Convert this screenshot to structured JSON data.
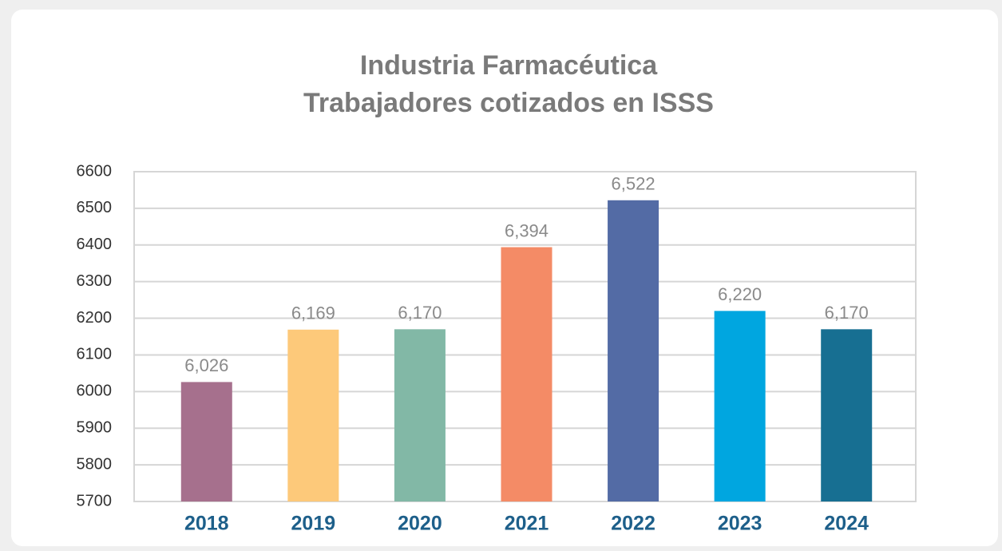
{
  "chart_data": {
    "type": "bar",
    "title": "Industria Farmacéutica",
    "subtitle": "Trabajadores cotizados en ISSS",
    "categories": [
      "2018",
      "2019",
      "2020",
      "2021",
      "2022",
      "2023",
      "2024"
    ],
    "values": [
      6026,
      6169,
      6170,
      6394,
      6522,
      6220,
      6170
    ],
    "value_labels": [
      "6,026",
      "6,169",
      "6,170",
      "6,394",
      "6,522",
      "6,220",
      "6,170"
    ],
    "colors": [
      "#a6708d",
      "#fdc97a",
      "#82b8a6",
      "#f48b66",
      "#536ba5",
      "#00a6e0",
      "#176f92"
    ],
    "ylim": [
      5700,
      6600
    ],
    "yticks": [
      5700,
      5800,
      5900,
      6000,
      6100,
      6200,
      6300,
      6400,
      6500,
      6600
    ],
    "grid": true
  }
}
